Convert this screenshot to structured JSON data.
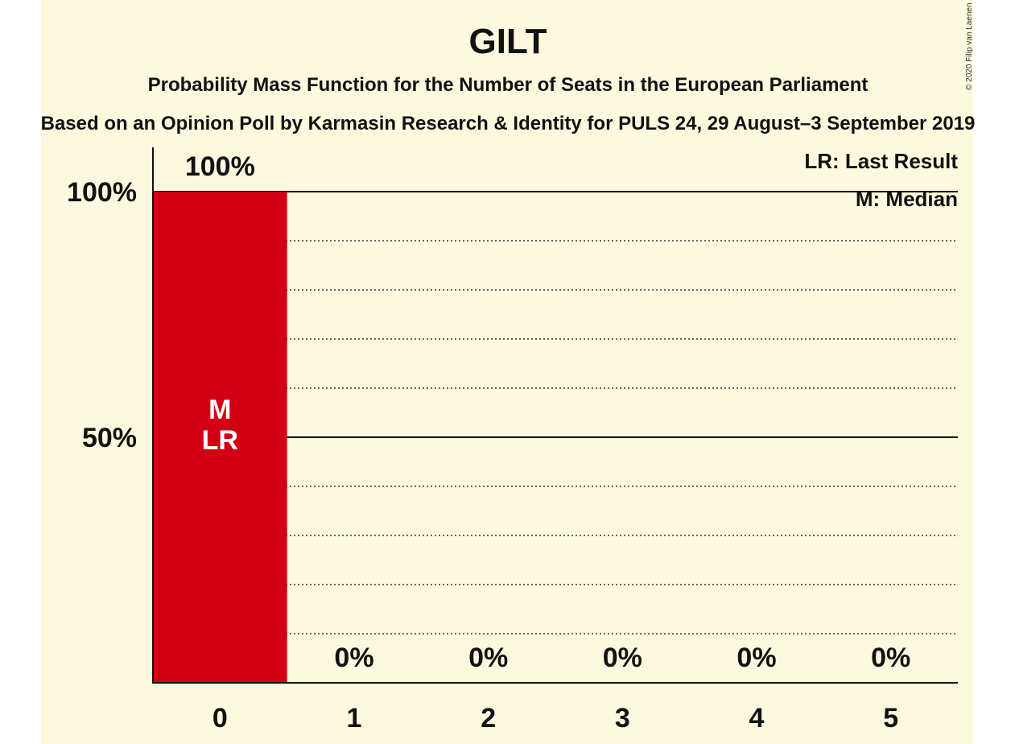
{
  "chart_data": {
    "type": "bar",
    "title": "GILT",
    "subtitle": "Probability Mass Function for the Number of Seats in the European Parliament",
    "subtitle2": "Based on an Opinion Poll by Karmasin Research & Identity for PULS 24, 29 August–3 September 2019",
    "categories": [
      "0",
      "1",
      "2",
      "3",
      "4",
      "5"
    ],
    "values": [
      100,
      0,
      0,
      0,
      0,
      0
    ],
    "value_labels": [
      "100%",
      "0%",
      "0%",
      "0%",
      "0%",
      "0%"
    ],
    "y_ticks": [
      {
        "value": 50,
        "label": "50%"
      },
      {
        "value": 100,
        "label": "100%"
      }
    ],
    "ylim": [
      0,
      100
    ],
    "grid": true,
    "bar_color": "#d20014",
    "in_bar_labels": {
      "category": "0",
      "lines": [
        "M",
        "LR"
      ]
    },
    "legend": [
      "LR: Last Result",
      "M: Median"
    ],
    "legend_position": "top-right",
    "copyright": "© 2020 Filip van Laenen"
  }
}
